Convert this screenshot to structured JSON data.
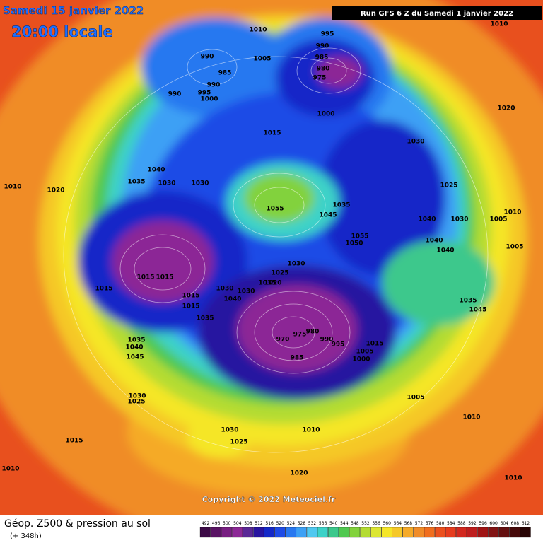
{
  "header": {
    "date": "Samedi 15 janvier 2022",
    "time": "20:00 locale",
    "run": "Run GFS 6 Z du Samedi 1 janvier 2022"
  },
  "footer": {
    "title": "Géop. Z500 & pression au sol",
    "lead": "(+ 348h)",
    "copyright": "Copyright © 2022 Meteociel.fr"
  },
  "legend": {
    "levels": [
      492,
      496,
      500,
      504,
      508,
      512,
      516,
      520,
      524,
      528,
      532,
      536,
      540,
      544,
      548,
      552,
      556,
      560,
      564,
      568,
      572,
      576,
      580,
      584,
      588,
      592,
      596,
      600,
      604,
      608,
      612
    ],
    "colors": [
      "#3c0a46",
      "#5a1464",
      "#781e82",
      "#8c2896",
      "#5a2896",
      "#2814a0",
      "#1428c8",
      "#1e4be6",
      "#2878f0",
      "#3ca0f5",
      "#50c8f0",
      "#3cd2c8",
      "#3cc88c",
      "#50c850",
      "#82d23c",
      "#b4dc32",
      "#dce632",
      "#f5e628",
      "#f5c828",
      "#f5aa28",
      "#f08c28",
      "#f06e1e",
      "#eb501e",
      "#e63c1e",
      "#d2281e",
      "#be1e1e",
      "#a01414",
      "#821414",
      "#641010",
      "#460a0a",
      "#280505"
    ]
  },
  "map": {
    "pressure_labels": [
      "1010",
      "995",
      "990",
      "985",
      "980",
      "975",
      "990",
      "985",
      "990",
      "995",
      "1000",
      "990",
      "1005",
      "1000",
      "1015",
      "1010",
      "1020",
      "1030",
      "1025",
      "1040",
      "1035",
      "1030",
      "1030",
      "1010",
      "1020",
      "1055",
      "1045",
      "1035",
      "1040",
      "1030",
      "1005",
      "1055",
      "1050",
      "1040",
      "1040",
      "1005",
      "1015",
      "1015",
      "1015",
      "1030",
      "1025",
      "1020",
      "1035",
      "1030",
      "1030",
      "1040",
      "1015",
      "1015",
      "1035",
      "1010",
      "1035",
      "1045",
      "970",
      "975",
      "980",
      "990",
      "995",
      "985",
      "1015",
      "1005",
      "1000",
      "1035",
      "1040",
      "1045",
      "1030",
      "1025",
      "1005",
      "1010",
      "1030",
      "1025",
      "1015",
      "1010",
      "1020",
      "1010",
      "1010"
    ]
  }
}
